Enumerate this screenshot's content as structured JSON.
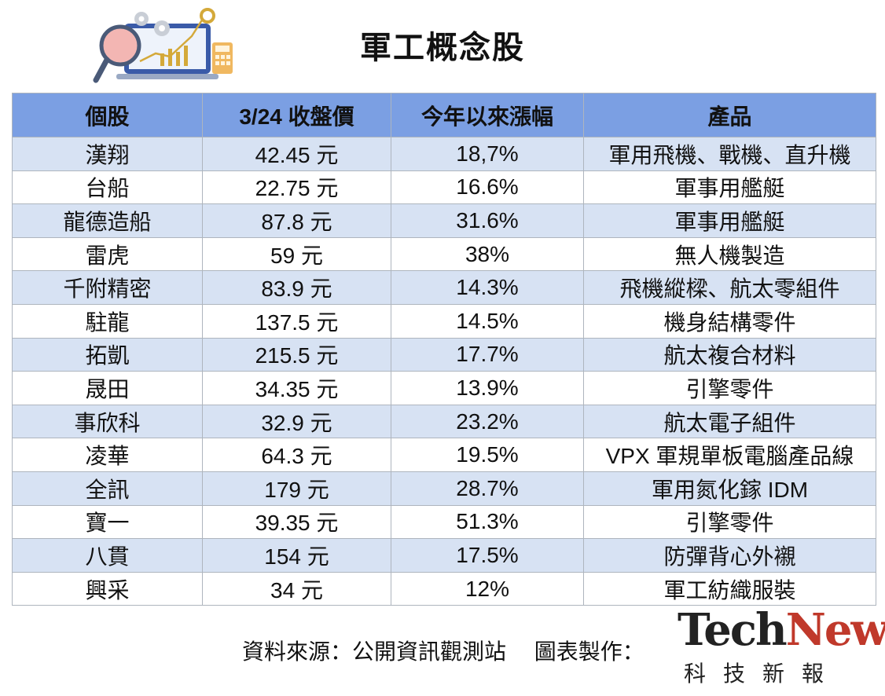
{
  "title": "軍工概念股",
  "table": {
    "headers": [
      "個股",
      "3/24 收盤價",
      "今年以來漲幅",
      "產品"
    ],
    "rows": [
      [
        "漢翔",
        "42.45 元",
        "18,7%",
        "軍用飛機、戰機、直升機"
      ],
      [
        "台船",
        "22.75 元",
        "16.6%",
        "軍事用艦艇"
      ],
      [
        "龍德造船",
        "87.8 元",
        "31.6%",
        "軍事用艦艇"
      ],
      [
        "雷虎",
        "59 元",
        "38%",
        "無人機製造"
      ],
      [
        "千附精密",
        "83.9 元",
        "14.3%",
        "飛機縱樑、航太零組件"
      ],
      [
        "駐龍",
        "137.5 元",
        "14.5%",
        "機身結構零件"
      ],
      [
        "拓凱",
        "215.5 元",
        "17.7%",
        "航太複合材料"
      ],
      [
        "晟田",
        "34.35 元",
        "13.9%",
        "引擎零件"
      ],
      [
        "事欣科",
        "32.9 元",
        "23.2%",
        "航太電子組件"
      ],
      [
        "凌華",
        "64.3 元",
        "19.5%",
        "VPX 軍規單板電腦產品線"
      ],
      [
        "全訊",
        "179 元",
        "28.7%",
        "軍用氮化鎵 IDM"
      ],
      [
        "寶一",
        "39.35 元",
        "51.3%",
        "引擎零件"
      ],
      [
        "八貫",
        "154 元",
        "17.5%",
        "防彈背心外襯"
      ],
      [
        "興采",
        "34 元",
        "12%",
        "軍工紡織服裝"
      ]
    ]
  },
  "footer": {
    "source": "資料來源：公開資訊觀測站　 圖表製作："
  },
  "brand": {
    "tech": "Tech",
    "news": "News",
    "subtitle": "科技新報"
  },
  "colors": {
    "header_bg": "#7b9fe3",
    "row_alt_bg": "#d7e2f3",
    "brand_red": "#c0392b"
  },
  "icons": {
    "illustration": "analytics-illustration-icon"
  }
}
